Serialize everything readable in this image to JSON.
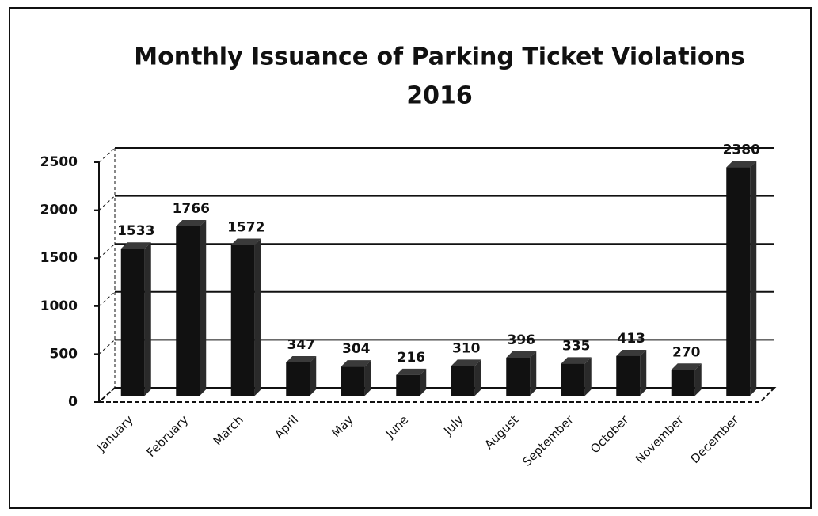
{
  "chart_data": {
    "type": "bar3d",
    "title": "Monthly Issuance of Parking Ticket Violations",
    "subtitle": "2016",
    "categories": [
      "January",
      "February",
      "March",
      "April",
      "May",
      "June",
      "July",
      "August",
      "September",
      "October",
      "November",
      "December"
    ],
    "values": [
      1533,
      1766,
      1572,
      347,
      304,
      216,
      310,
      396,
      335,
      413,
      270,
      2380
    ],
    "color": "#111111",
    "ylim": [
      0,
      2500
    ],
    "yticks": [
      0,
      500,
      1000,
      1500,
      2000,
      2500
    ],
    "grid": true
  }
}
